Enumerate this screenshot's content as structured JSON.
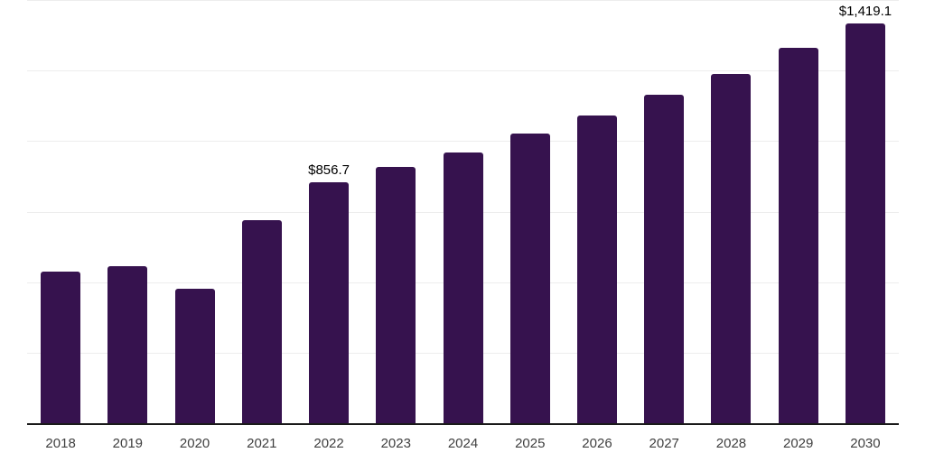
{
  "colors": {
    "bar": "#36124e",
    "axis_line": "#1a1a1a",
    "gridline": "#ededed",
    "tick_label": "#3f3f3f",
    "data_label": "#000000",
    "background": "#ffffff"
  },
  "chart_data": {
    "type": "bar",
    "title": "",
    "xlabel": "",
    "ylabel": "",
    "categories": [
      "2018",
      "2019",
      "2020",
      "2021",
      "2022",
      "2023",
      "2024",
      "2025",
      "2026",
      "2027",
      "2028",
      "2029",
      "2030"
    ],
    "values": [
      541.0,
      561.2,
      479.8,
      723.4,
      856.7,
      910.2,
      963.9,
      1031.1,
      1095.2,
      1166.7,
      1241.3,
      1332.4,
      1419.1
    ],
    "data_labels": [
      null,
      null,
      null,
      null,
      "$856.7",
      null,
      null,
      null,
      null,
      null,
      null,
      null,
      "$1,419.1"
    ],
    "ylim": [
      0,
      1500
    ],
    "gridline_interval": 250,
    "grid": "horizontal-only",
    "legend_position": "none",
    "y_axis_tick_labels_visible": false
  }
}
